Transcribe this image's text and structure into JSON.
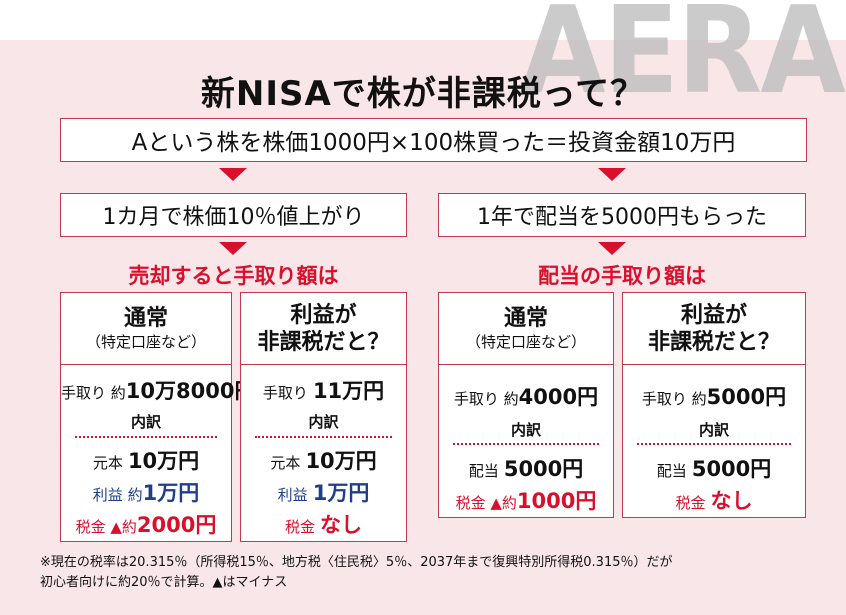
{
  "watermark": "AERA",
  "title": "新NISAで株が非課税って？",
  "premise": "Aという株を株価1000円×100株買った＝投資金額10万円",
  "left": {
    "condition": "1カ月で株価10％値上がり",
    "heading": "売却すると手取り額は",
    "normal": {
      "title": "通常",
      "subtitle": "（特定口座など）",
      "net_label": "手取り 約",
      "net_value": "10万8000円",
      "breakdown": "内訳",
      "principal_label": "元本",
      "principal_value": "10万円",
      "profit_label": "利益 約",
      "profit_value": "1万円",
      "tax_label": "税金 ▲約",
      "tax_value": "2000円"
    },
    "nisa": {
      "title_line1": "利益が",
      "title_line2": "非課税だと？",
      "net_label": "手取り",
      "net_value": "11万円",
      "breakdown": "内訳",
      "principal_label": "元本",
      "principal_value": "10万円",
      "profit_label": "利益",
      "profit_value": "1万円",
      "tax_label": "税金",
      "tax_value": "なし"
    }
  },
  "right": {
    "condition": "1年で配当を5000円もらった",
    "heading": "配当の手取り額は",
    "normal": {
      "title": "通常",
      "subtitle": "（特定口座など）",
      "net_label": "手取り 約",
      "net_value": "4000円",
      "breakdown": "内訳",
      "dividend_label": "配当",
      "dividend_value": "5000円",
      "tax_label": "税金 ▲約",
      "tax_value": "1000円"
    },
    "nisa": {
      "title_line1": "利益が",
      "title_line2": "非課税だと？",
      "net_label": "手取り 約",
      "net_value": "5000円",
      "breakdown": "内訳",
      "dividend_label": "配当",
      "dividend_value": "5000円",
      "tax_label": "税金",
      "tax_value": "なし"
    }
  },
  "footnote_line1": "※現在の税率は20.315％（所得税15％、地方税〈住民税〉5％、2037年まで復興特別所得税0.315％）だが",
  "footnote_line2": "初心者向けに約20％で計算。▲はマイナス",
  "colors": {
    "accent_red": "#d9102c",
    "frame_red": "#c23b4a",
    "profit_blue": "#1f3e8c",
    "background_pink": "#f8e6e9"
  }
}
